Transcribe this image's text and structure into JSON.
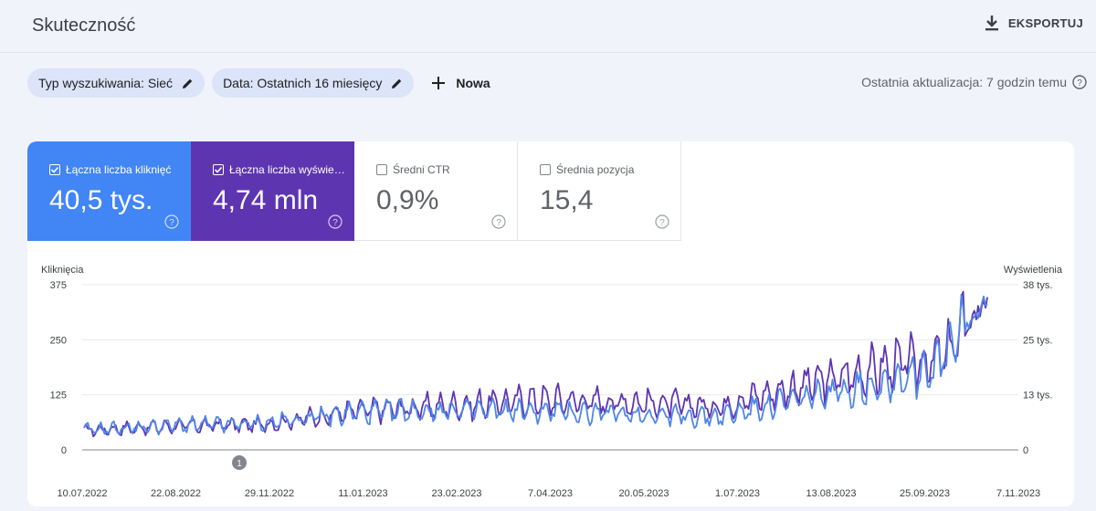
{
  "header": {
    "title": "Skuteczność",
    "export_label": "EKSPORTUJ"
  },
  "filters": {
    "chips": [
      {
        "label": "Typ wyszukiwania: Sieć"
      },
      {
        "label": "Data: Ostatnich 16 miesięcy"
      }
    ],
    "new_label": "Nowa",
    "updated": "Ostatnia aktualizacja: 7 godzin temu"
  },
  "metrics": [
    {
      "label": "Łączna liczba kliknięć",
      "value": "40,5 tys.",
      "checked": true,
      "color": "#4285f4"
    },
    {
      "label": "Łączna liczba wyświetleń",
      "value": "4,74 mln",
      "checked": true,
      "color": "#5e35b1"
    },
    {
      "label": "Średni CTR",
      "value": "0,9%",
      "checked": false
    },
    {
      "label": "Średnia pozycja",
      "value": "15,4",
      "checked": false
    }
  ],
  "chart_data": {
    "type": "line",
    "x_labels": [
      "10.07.2022",
      "22.08.2022",
      "29.11.2022",
      "11.01.2023",
      "23.02.2023",
      "7.04.2023",
      "20.05.2023",
      "1.07.2023",
      "13.08.2023",
      "25.09.2023",
      "7.11.2023"
    ],
    "y_left": {
      "label": "Kliknięcia",
      "ticks": [
        "375",
        "250",
        "125",
        "0"
      ],
      "range": [
        0,
        375
      ]
    },
    "y_right": {
      "label": "Wyświetlenia",
      "ticks": [
        "38 tys.",
        "25 tys.",
        "13 tys.",
        "0"
      ],
      "range": [
        0,
        38000
      ]
    },
    "annotation": "1",
    "series": [
      {
        "axis": "left",
        "color": "#4f86e8",
        "anchors": [
          [
            0,
            45
          ],
          [
            0.1,
            55
          ],
          [
            0.2,
            60
          ],
          [
            0.3,
            85
          ],
          [
            0.4,
            90
          ],
          [
            0.5,
            88
          ],
          [
            0.6,
            82
          ],
          [
            0.7,
            75
          ],
          [
            0.8,
            118
          ],
          [
            0.9,
            160
          ],
          [
            0.95,
            200
          ],
          [
            1.0,
            355
          ]
        ]
      },
      {
        "axis": "right",
        "color": "#5e35b1",
        "anchors": [
          [
            0,
            4500
          ],
          [
            0.1,
            5500
          ],
          [
            0.2,
            5800
          ],
          [
            0.3,
            9000
          ],
          [
            0.4,
            10000
          ],
          [
            0.5,
            11500
          ],
          [
            0.6,
            11000
          ],
          [
            0.7,
            10000
          ],
          [
            0.8,
            15000
          ],
          [
            0.9,
            19500
          ],
          [
            0.95,
            21000
          ],
          [
            1.0,
            35000
          ]
        ]
      }
    ]
  }
}
